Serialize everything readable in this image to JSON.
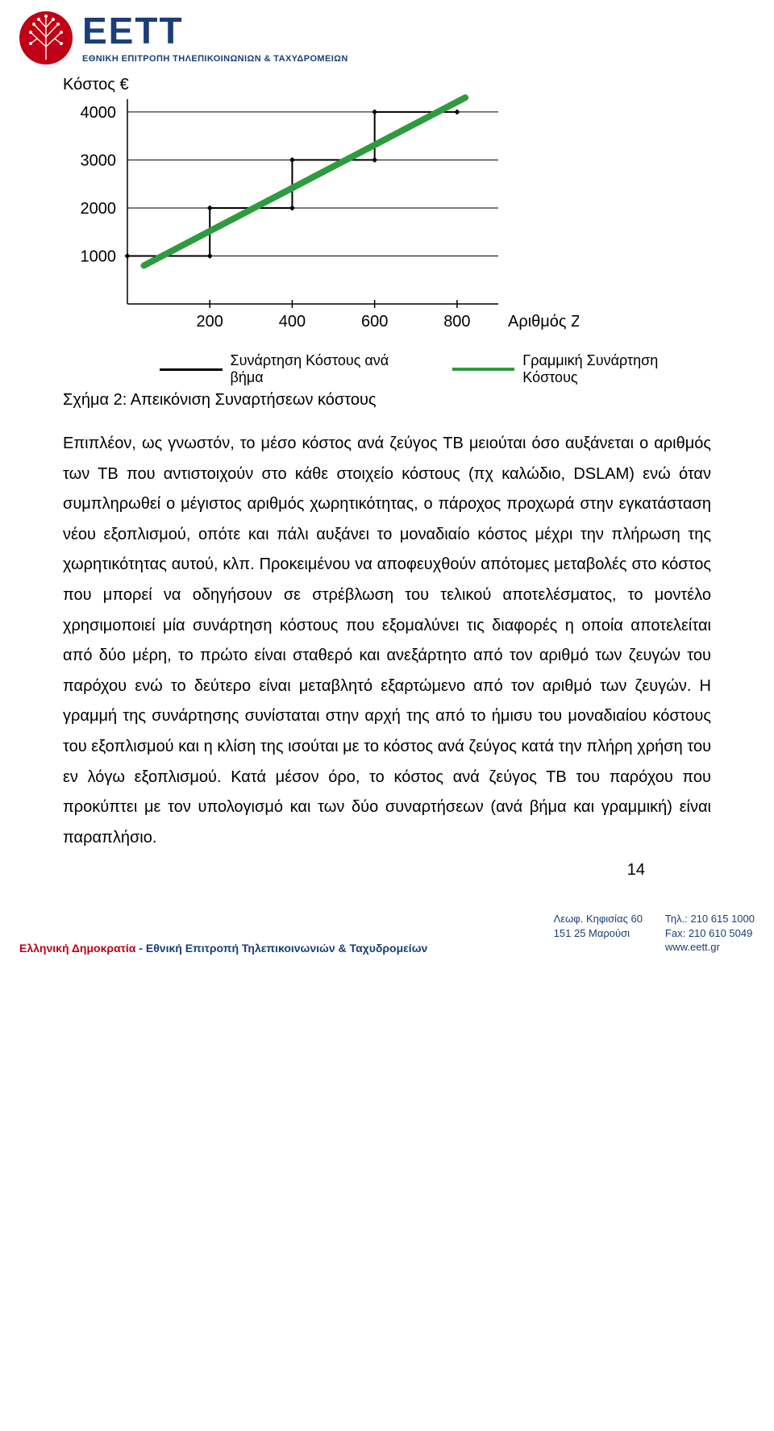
{
  "logo": {
    "word": "EETT",
    "subtitle": "ΕΘΝΙΚΗ ΕΠΙΤΡΟΠΗ ΤΗΛΕΠΙΚΟΙΝΩΝΙΩΝ & ΤΑΧΥΔΡΟΜΕΙΩΝ",
    "mark_color": "#c10016",
    "tree_color": "#ffffff",
    "text_color": "#1a3e7a"
  },
  "chart": {
    "type": "step-line-with-trend",
    "title": "Κόστος €",
    "y_axis_label": "",
    "x_axis_label": "Αριθμός Ζευγών",
    "y_ticks": [
      "4000",
      "3000",
      "2000",
      "1000"
    ],
    "x_ticks": [
      "200",
      "400",
      "600",
      "800"
    ],
    "ylim": [
      0,
      4200
    ],
    "xlim": [
      0,
      900
    ],
    "background_color": "#ffffff",
    "axis_color": "#000000",
    "gridline_color": "#000000",
    "step_series": {
      "color": "#000000",
      "line_width": 2,
      "marker": "diamond",
      "marker_size": 7,
      "marker_color": "#000000",
      "points": [
        [
          0,
          1000
        ],
        [
          200,
          1000
        ],
        [
          200,
          2000
        ],
        [
          400,
          2000
        ],
        [
          400,
          3000
        ],
        [
          600,
          3000
        ],
        [
          600,
          4000
        ],
        [
          800,
          4000
        ]
      ],
      "markers_at": [
        [
          0,
          1000
        ],
        [
          200,
          1000
        ],
        [
          200,
          2000
        ],
        [
          400,
          2000
        ],
        [
          400,
          3000
        ],
        [
          600,
          3000
        ],
        [
          600,
          4000
        ],
        [
          800,
          4000
        ]
      ]
    },
    "trend_series": {
      "color": "#2e9b3f",
      "line_width": 8,
      "start": [
        40,
        800
      ],
      "end": [
        820,
        4300
      ],
      "end_marker": "diamond",
      "end_marker_size": 8
    },
    "legend": [
      {
        "label": "Συνάρτηση Κόστους ανά βήμα",
        "color": "#000000",
        "style": "solid",
        "width": 3
      },
      {
        "label": "Γραμμική Συνάρτηση Κόστους",
        "color": "#2e9b3f",
        "style": "solid",
        "width": 4
      }
    ],
    "caption": "Σχήμα 2: Απεικόνιση Συναρτήσεων κόστους"
  },
  "body_text": "Επιπλέον, ως γνωστόν, το μέσο κόστος ανά ζεύγος ΤΒ μειούται όσο αυξάνεται ο αριθμός των ΤΒ που αντιστοιχούν στο κάθε στοιχείο κόστους (πχ καλώδιο, DSLAM) ενώ όταν συμπληρωθεί ο μέγιστος αριθμός χωρητικότητας, ο πάροχος προχωρά στην εγκατάσταση νέου εξοπλισμού, οπότε και πάλι αυξάνει το μοναδιαίο κόστος μέχρι την πλήρωση της χωρητικότητας αυτού, κλπ. Προκειμένου να αποφευχθούν απότομες μεταβολές στο κόστος που μπορεί να οδηγήσουν σε στρέβλωση του τελικού αποτελέσματος, το μοντέλο χρησιμοποιεί μία συνάρτηση κόστους που εξομαλύνει τις διαφορές η οποία αποτελείται από δύο μέρη, το πρώτο είναι σταθερό και ανεξάρτητο από τον αριθμό των ζευγών του παρόχου ενώ το δεύτερο είναι μεταβλητό εξαρτώμενο από τον αριθμό των ζευγών. Η γραμμή της συνάρτησης συνίσταται στην αρχή της από το ήμισυ του μοναδιαίου κόστους του εξοπλισμού και η κλίση της ισούται με το κόστος ανά ζεύγος κατά την πλήρη χρήση του εν λόγω εξοπλισμού. Κατά μέσον όρο, το κόστος ανά ζεύγος ΤΒ του παρόχου που προκύπτει με τον υπολογισμό και των δύο συναρτήσεων (ανά βήμα και γραμμική) είναι παραπλήσιο.",
  "page_number": "14",
  "footer": {
    "left_red": "Ελληνική Δημοκρατία",
    "left_sep": " - ",
    "left_blue": "Εθνική Επιτροπή Τηλεπικοινωνιών & Ταχυδρομείων",
    "addr_line1": "Λεωφ. Κηφισίας 60",
    "addr_line2": "151 25 Μαρούσι",
    "tel": "Τηλ.: 210 615 1000",
    "fax": "Fax: 210 610 5049",
    "web": "www.eett.gr",
    "text_color": "#1a3e7a",
    "red_color": "#c10016"
  }
}
